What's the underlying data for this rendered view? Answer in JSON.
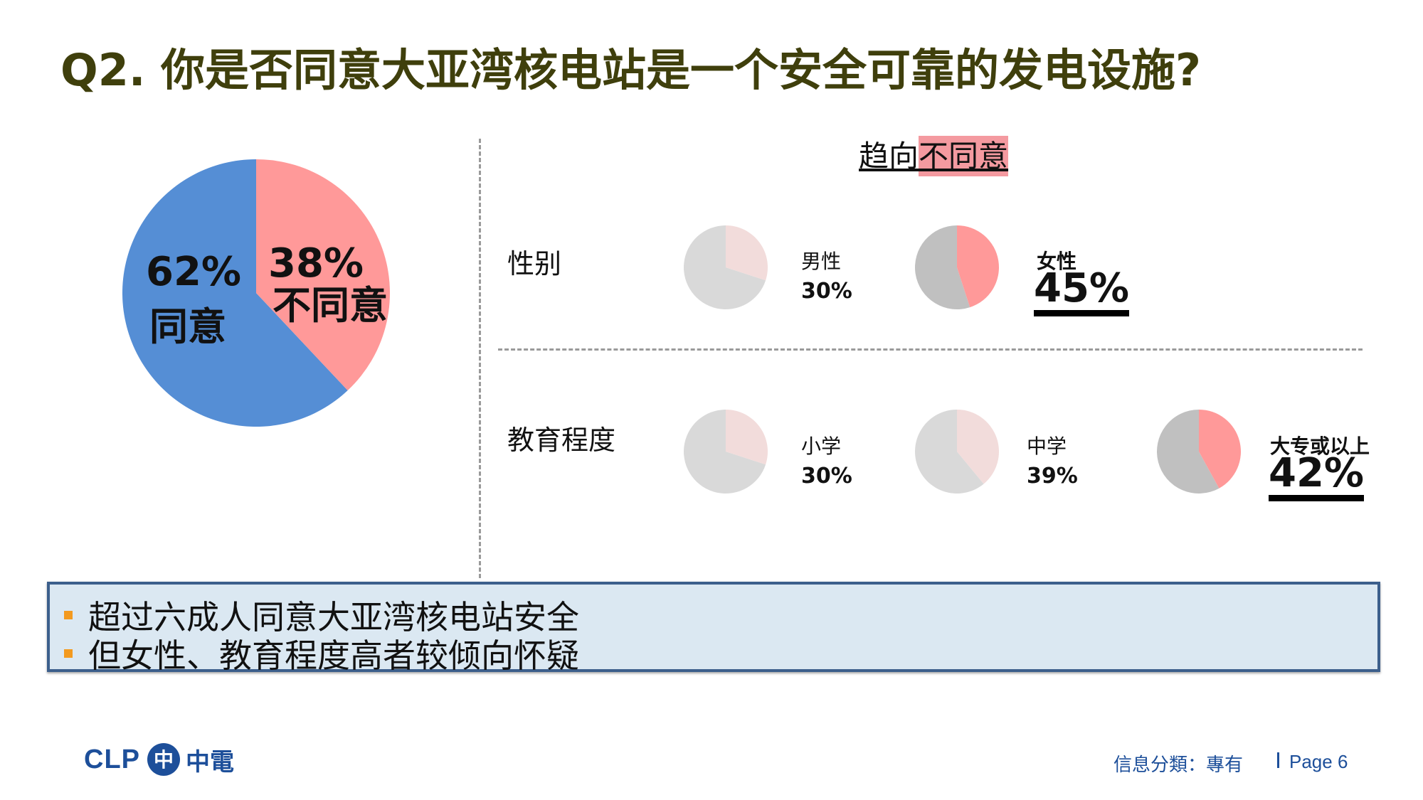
{
  "title": "Q2. 你是否同意大亚湾核电站是一个安全可靠的发电设施?",
  "colors": {
    "agree": "#558ed5",
    "disagree": "#ff9999",
    "grey": "#c0c0c0",
    "faded_grey": "#d9d9d9",
    "faded_pink": "#f2dcdb"
  },
  "main_pie": {
    "agree_pct": "62%",
    "agree_label": "同意",
    "disagree_pct": "38%",
    "disagree_label": "不同意"
  },
  "subtitle": {
    "prefix": "趋向",
    "highlight": "不同意"
  },
  "gender": {
    "label": "性别",
    "items": [
      {
        "label": "男性",
        "value": "30%"
      },
      {
        "label": "女性",
        "value": "45%"
      }
    ]
  },
  "education": {
    "label": "教育程度",
    "items": [
      {
        "label": "小学",
        "value": "30%"
      },
      {
        "label": "中学",
        "value": "39%"
      },
      {
        "label": "大专或以上",
        "value": "42%"
      }
    ]
  },
  "summary": {
    "bullets": [
      "超过六成人同意大亚湾核电站安全",
      "但女性、教育程度高者较倾向怀疑"
    ]
  },
  "footer": {
    "logo_text": "CLP",
    "logo_cn": "中電",
    "logo_mark_char": "中",
    "classification": "信息分類：專有",
    "page": "Page 6"
  },
  "chart_data": [
    {
      "type": "pie",
      "categories": [
        "同意",
        "不同意"
      ],
      "values": [
        62,
        38
      ]
    },
    {
      "type": "pie",
      "categories": [
        "男性",
        "女性"
      ],
      "values": [
        30,
        45
      ],
      "note_series": "percentage tending to disagree"
    },
    {
      "type": "pie",
      "categories": [
        "小学",
        "中学",
        "大专或以上"
      ],
      "values": [
        30,
        39,
        42
      ]
    }
  ]
}
